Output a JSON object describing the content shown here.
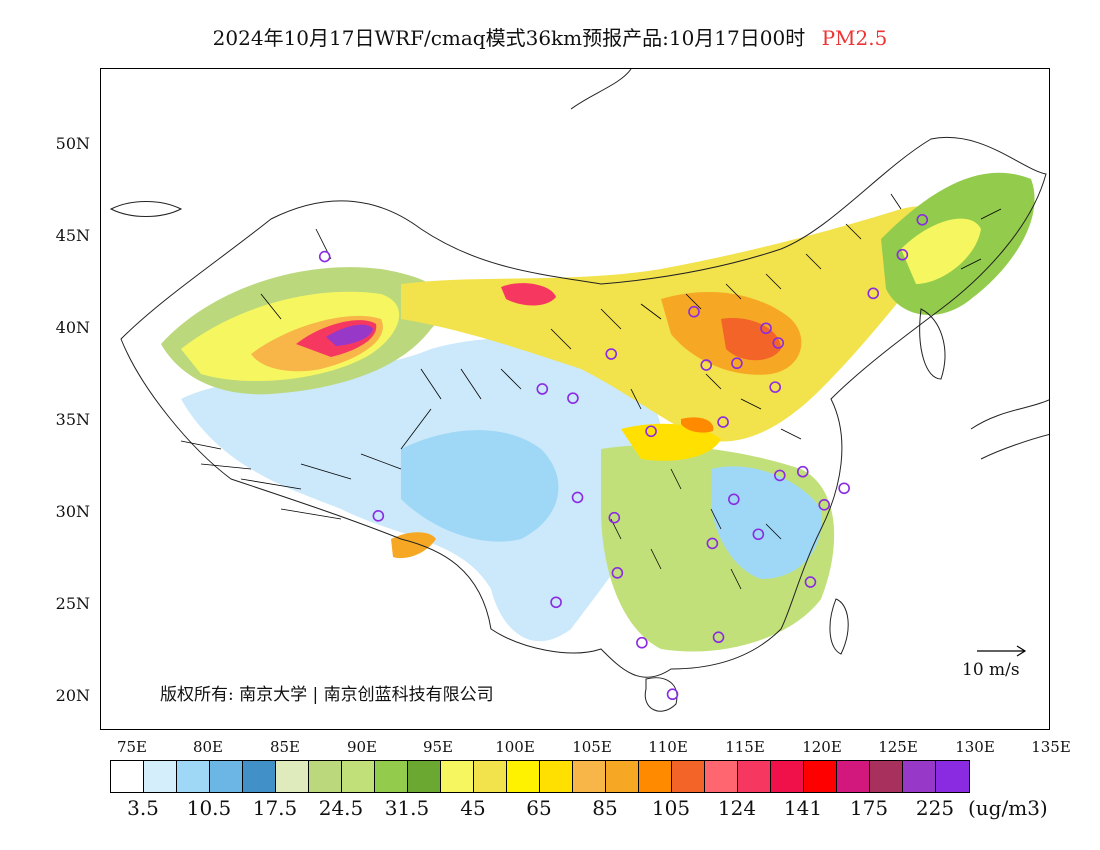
{
  "title": {
    "main": "2024年10月17日WRF/cmaq模式36km预报产品:10月17日00时",
    "variable": "PM2.5"
  },
  "axes": {
    "lat_labels": [
      "50N",
      "45N",
      "40N",
      "35N",
      "30N",
      "25N",
      "20N"
    ],
    "lon_labels": [
      "75E",
      "80E",
      "85E",
      "90E",
      "95E",
      "100E",
      "105E",
      "110E",
      "115E",
      "120E",
      "125E",
      "130E",
      "135E"
    ]
  },
  "map": {
    "lon_range": [
      73,
      135
    ],
    "lat_range": [
      18,
      54
    ],
    "cities": [
      {
        "lon": 87.6,
        "lat": 43.8
      },
      {
        "lon": 91.1,
        "lat": 29.7
      },
      {
        "lon": 101.8,
        "lat": 36.6
      },
      {
        "lon": 103.8,
        "lat": 36.1
      },
      {
        "lon": 106.3,
        "lat": 38.5
      },
      {
        "lon": 111.7,
        "lat": 40.8
      },
      {
        "lon": 112.5,
        "lat": 37.9
      },
      {
        "lon": 114.5,
        "lat": 38.0
      },
      {
        "lon": 116.4,
        "lat": 39.9
      },
      {
        "lon": 117.2,
        "lat": 39.1
      },
      {
        "lon": 117.0,
        "lat": 36.7
      },
      {
        "lon": 113.6,
        "lat": 34.8
      },
      {
        "lon": 108.9,
        "lat": 34.3
      },
      {
        "lon": 104.1,
        "lat": 30.7
      },
      {
        "lon": 106.5,
        "lat": 29.6
      },
      {
        "lon": 106.7,
        "lat": 26.6
      },
      {
        "lon": 102.7,
        "lat": 25.0
      },
      {
        "lon": 108.3,
        "lat": 22.8
      },
      {
        "lon": 113.3,
        "lat": 23.1
      },
      {
        "lon": 110.3,
        "lat": 20.0
      },
      {
        "lon": 112.9,
        "lat": 28.2
      },
      {
        "lon": 114.3,
        "lat": 30.6
      },
      {
        "lon": 115.9,
        "lat": 28.7
      },
      {
        "lon": 117.3,
        "lat": 31.9
      },
      {
        "lon": 118.8,
        "lat": 32.1
      },
      {
        "lon": 120.2,
        "lat": 30.3
      },
      {
        "lon": 121.5,
        "lat": 31.2
      },
      {
        "lon": 119.3,
        "lat": 26.1
      },
      {
        "lon": 123.4,
        "lat": 41.8
      },
      {
        "lon": 125.3,
        "lat": 43.9
      },
      {
        "lon": 126.6,
        "lat": 45.8
      }
    ]
  },
  "copyright": "版权所有: 南京大学 | 南京创蓝科技有限公司",
  "wind_scale_label": "10 m/s",
  "colorbar": {
    "colors": [
      "#ffffff",
      "#d4eefc",
      "#9fd8f6",
      "#6cb6e6",
      "#4190c8",
      "#e0ebbd",
      "#bcd87c",
      "#c2e07a",
      "#93cc4c",
      "#6aa832",
      "#f6f760",
      "#f2e24c",
      "#fff200",
      "#ffe000",
      "#f8b648",
      "#f6a824",
      "#ff8a00",
      "#f26428",
      "#ff6670",
      "#f63860",
      "#f0104a",
      "#ff0000",
      "#d2187c",
      "#a8305c",
      "#9838c8",
      "#8a2be2"
    ],
    "labels": [
      "3.5",
      "10.5",
      "17.5",
      "24.5",
      "31.5",
      "45",
      "65",
      "85",
      "105",
      "124",
      "141",
      "175",
      "225"
    ],
    "units": "(ug/m3)"
  }
}
